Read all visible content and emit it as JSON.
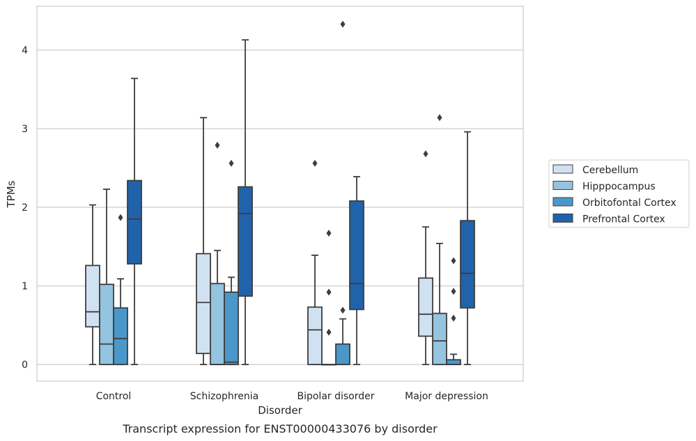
{
  "chart_data": {
    "type": "box",
    "caption": "Transcript expression for ENST00000433076 by disorder",
    "xlabel": "Disorder",
    "ylabel": "TPMs",
    "ylim": [
      -0.2,
      4.55
    ],
    "yticks": [
      0,
      1,
      2,
      3,
      4
    ],
    "grid": "horizontal",
    "legend_position": "right",
    "categories": [
      "Control",
      "Schizophrenia",
      "Bipolar disorder",
      "Major depression"
    ],
    "series": [
      {
        "name": "Cerebellum",
        "color": "#d0e1f2",
        "boxes": [
          {
            "whisker_low": 0,
            "q1": 0.48,
            "median": 0.67,
            "q3": 1.26,
            "whisker_high": 2.03,
            "outliers": []
          },
          {
            "whisker_low": 0,
            "q1": 0.14,
            "median": 0.79,
            "q3": 1.41,
            "whisker_high": 3.14,
            "outliers": []
          },
          {
            "whisker_low": 0,
            "q1": 0,
            "median": 0.44,
            "q3": 0.73,
            "whisker_high": 1.39,
            "outliers": [
              2.56
            ]
          },
          {
            "whisker_low": 0,
            "q1": 0.36,
            "median": 0.64,
            "q3": 1.1,
            "whisker_high": 1.75,
            "outliers": [
              2.68
            ]
          }
        ]
      },
      {
        "name": "Hipppocampus",
        "color": "#94c4df",
        "boxes": [
          {
            "whisker_low": 0,
            "q1": 0,
            "median": 0.26,
            "q3": 1.02,
            "whisker_high": 2.23,
            "outliers": []
          },
          {
            "whisker_low": 0,
            "q1": 0,
            "median": 0,
            "q3": 1.03,
            "whisker_high": 1.45,
            "outliers": [
              2.79
            ]
          },
          {
            "whisker_low": 0,
            "q1": 0,
            "median": 0,
            "q3": 0,
            "whisker_high": 0,
            "outliers": [
              0.41,
              0.92,
              1.67
            ]
          },
          {
            "whisker_low": 0,
            "q1": 0,
            "median": 0.3,
            "q3": 0.65,
            "whisker_high": 1.54,
            "outliers": [
              3.14
            ]
          }
        ]
      },
      {
        "name": "Orbitofontal Cortex",
        "color": "#4a98c9",
        "boxes": [
          {
            "whisker_low": 0,
            "q1": 0,
            "median": 0.33,
            "q3": 0.72,
            "whisker_high": 1.09,
            "outliers": [
              1.87
            ]
          },
          {
            "whisker_low": 0,
            "q1": 0,
            "median": 0.03,
            "q3": 0.92,
            "whisker_high": 1.11,
            "outliers": [
              2.56
            ]
          },
          {
            "whisker_low": 0,
            "q1": 0,
            "median": 0,
            "q3": 0.26,
            "whisker_high": 0.58,
            "outliers": [
              0.69,
              4.33
            ]
          },
          {
            "whisker_low": 0,
            "q1": 0,
            "median": 0,
            "q3": 0.06,
            "whisker_high": 0.13,
            "outliers": [
              0.59,
              0.93,
              1.32
            ]
          }
        ]
      },
      {
        "name": "Prefrontal Cortex",
        "color": "#2163aa",
        "boxes": [
          {
            "whisker_low": 0,
            "q1": 1.28,
            "median": 1.85,
            "q3": 2.34,
            "whisker_high": 3.64,
            "outliers": []
          },
          {
            "whisker_low": 0,
            "q1": 0.87,
            "median": 1.92,
            "q3": 2.26,
            "whisker_high": 4.13,
            "outliers": []
          },
          {
            "whisker_low": 0,
            "q1": 0.7,
            "median": 1.03,
            "q3": 2.08,
            "whisker_high": 2.39,
            "outliers": []
          },
          {
            "whisker_low": 0,
            "q1": 0.72,
            "median": 1.16,
            "q3": 1.83,
            "whisker_high": 2.96,
            "outliers": []
          }
        ]
      }
    ]
  }
}
